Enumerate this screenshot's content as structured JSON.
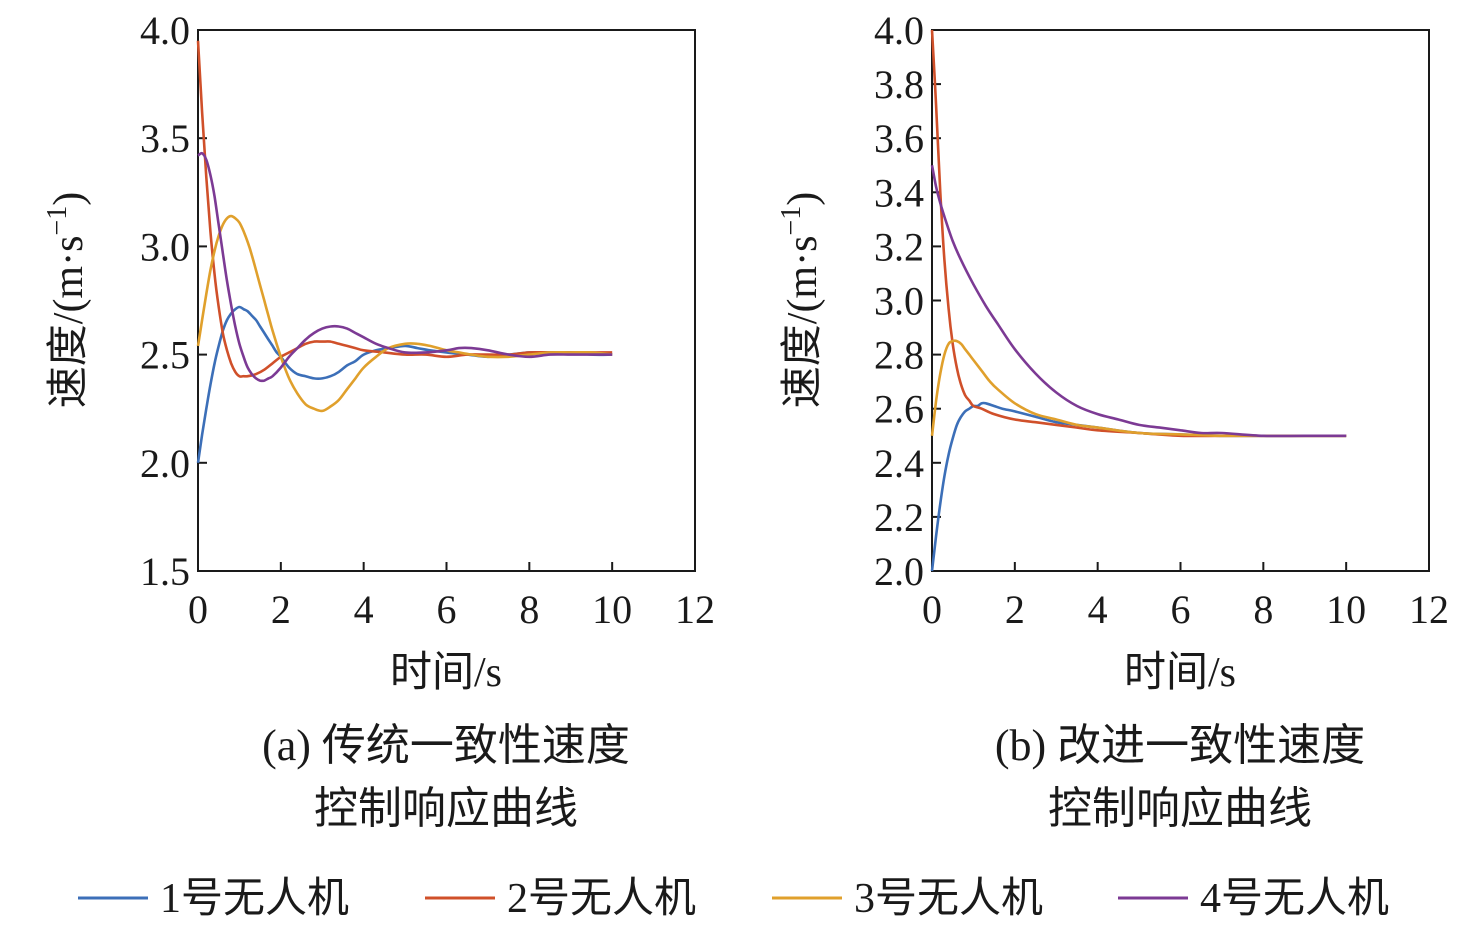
{
  "chart_data": [
    {
      "type": "line",
      "caption_line1": "(a) 传统一致性速度",
      "caption_line2": "控制响应曲线",
      "xlabel": "时间/s",
      "ylabel": "速度/(m·s",
      "ylabel_sup": "−1",
      "ylabel_close": ")",
      "xlim": [
        0,
        12
      ],
      "ylim": [
        1.5,
        4.0
      ],
      "xticks": [
        "0",
        "2",
        "4",
        "6",
        "8",
        "10",
        "12"
      ],
      "yticks": [
        "1.5",
        "2.0",
        "2.5",
        "3.0",
        "3.5",
        "4.0"
      ],
      "grid": false,
      "series": [
        {
          "name": "1号无人机",
          "color": "#3c6fb8",
          "x": [
            0,
            0.1,
            0.2,
            0.3,
            0.4,
            0.5,
            0.6,
            0.7,
            0.8,
            0.9,
            1.0,
            1.1,
            1.2,
            1.3,
            1.4,
            1.5,
            1.6,
            1.7,
            1.8,
            1.9,
            2.0,
            2.2,
            2.4,
            2.6,
            2.8,
            3.0,
            3.2,
            3.4,
            3.6,
            3.8,
            4.0,
            4.3,
            4.6,
            5.0,
            5.3,
            5.6,
            6.0,
            6.5,
            7.0,
            7.5,
            8.0,
            8.5,
            9.0,
            9.5,
            10.0
          ],
          "y": [
            2.0,
            2.13,
            2.25,
            2.36,
            2.46,
            2.54,
            2.61,
            2.66,
            2.69,
            2.71,
            2.72,
            2.71,
            2.7,
            2.68,
            2.66,
            2.63,
            2.6,
            2.57,
            2.54,
            2.51,
            2.49,
            2.44,
            2.41,
            2.4,
            2.39,
            2.39,
            2.4,
            2.42,
            2.45,
            2.47,
            2.5,
            2.52,
            2.53,
            2.54,
            2.53,
            2.52,
            2.51,
            2.5,
            2.49,
            2.5,
            2.51,
            2.51,
            2.51,
            2.5,
            2.5
          ]
        },
        {
          "name": "2号无人机",
          "color": "#d0502a",
          "x": [
            0,
            0.1,
            0.2,
            0.3,
            0.4,
            0.5,
            0.6,
            0.7,
            0.8,
            0.9,
            1.0,
            1.1,
            1.2,
            1.4,
            1.6,
            1.8,
            2.0,
            2.2,
            2.4,
            2.6,
            2.8,
            3.0,
            3.2,
            3.4,
            3.6,
            3.8,
            4.0,
            4.5,
            5.0,
            5.5,
            6.0,
            6.5,
            7.0,
            7.5,
            8.0,
            8.5,
            9.0,
            9.5,
            10.0
          ],
          "y": [
            3.95,
            3.62,
            3.32,
            3.07,
            2.87,
            2.72,
            2.6,
            2.52,
            2.46,
            2.42,
            2.4,
            2.4,
            2.4,
            2.41,
            2.43,
            2.46,
            2.49,
            2.51,
            2.53,
            2.55,
            2.56,
            2.56,
            2.56,
            2.55,
            2.54,
            2.53,
            2.52,
            2.51,
            2.5,
            2.5,
            2.49,
            2.5,
            2.5,
            2.5,
            2.51,
            2.51,
            2.51,
            2.51,
            2.51
          ]
        },
        {
          "name": "3号无人机",
          "color": "#e0a02c",
          "x": [
            0,
            0.1,
            0.2,
            0.3,
            0.4,
            0.5,
            0.6,
            0.7,
            0.8,
            0.9,
            1.0,
            1.1,
            1.2,
            1.3,
            1.4,
            1.5,
            1.6,
            1.7,
            1.8,
            2.0,
            2.2,
            2.4,
            2.6,
            2.8,
            3.0,
            3.2,
            3.4,
            3.6,
            3.8,
            4.0,
            4.3,
            4.6,
            5.0,
            5.3,
            5.6,
            6.0,
            6.3,
            6.6,
            7.0,
            7.5,
            8.0,
            8.5,
            9.0,
            9.5,
            10.0
          ],
          "y": [
            2.54,
            2.66,
            2.78,
            2.89,
            2.98,
            3.05,
            3.1,
            3.13,
            3.14,
            3.13,
            3.11,
            3.07,
            3.02,
            2.96,
            2.89,
            2.82,
            2.75,
            2.68,
            2.61,
            2.49,
            2.39,
            2.32,
            2.27,
            2.25,
            2.24,
            2.26,
            2.29,
            2.34,
            2.39,
            2.44,
            2.49,
            2.53,
            2.55,
            2.55,
            2.54,
            2.52,
            2.51,
            2.5,
            2.49,
            2.49,
            2.5,
            2.51,
            2.51,
            2.51,
            2.5
          ]
        },
        {
          "name": "4号无人机",
          "color": "#7c3a94",
          "x": [
            0,
            0.1,
            0.2,
            0.3,
            0.4,
            0.5,
            0.6,
            0.7,
            0.8,
            0.9,
            1.0,
            1.1,
            1.2,
            1.3,
            1.4,
            1.5,
            1.6,
            1.7,
            1.8,
            2.0,
            2.2,
            2.4,
            2.6,
            2.8,
            3.0,
            3.2,
            3.4,
            3.6,
            3.8,
            4.0,
            4.3,
            4.6,
            5.0,
            5.5,
            6.0,
            6.3,
            6.6,
            7.0,
            7.5,
            8.0,
            8.5,
            9.0,
            9.5,
            10.0
          ],
          "y": [
            3.42,
            3.43,
            3.4,
            3.33,
            3.23,
            3.1,
            2.97,
            2.84,
            2.73,
            2.63,
            2.55,
            2.49,
            2.44,
            2.41,
            2.39,
            2.38,
            2.38,
            2.39,
            2.4,
            2.44,
            2.49,
            2.53,
            2.57,
            2.6,
            2.62,
            2.63,
            2.63,
            2.62,
            2.6,
            2.58,
            2.55,
            2.53,
            2.51,
            2.51,
            2.52,
            2.53,
            2.53,
            2.52,
            2.5,
            2.49,
            2.5,
            2.5,
            2.5,
            2.5
          ]
        }
      ]
    },
    {
      "type": "line",
      "caption_line1": "(b) 改进一致性速度",
      "caption_line2": "控制响应曲线",
      "xlabel": "时间/s",
      "ylabel": "速度/(m·s",
      "ylabel_sup": "−1",
      "ylabel_close": ")",
      "xlim": [
        0,
        12
      ],
      "ylim": [
        2.0,
        4.0
      ],
      "xticks": [
        "0",
        "2",
        "4",
        "6",
        "8",
        "10",
        "12"
      ],
      "yticks": [
        "2.0",
        "2.2",
        "2.4",
        "2.6",
        "2.8",
        "3.0",
        "3.2",
        "3.4",
        "3.6",
        "3.8",
        "4.0"
      ],
      "grid": false,
      "series": [
        {
          "name": "1号无人机",
          "color": "#3c6fb8",
          "x": [
            0,
            0.1,
            0.2,
            0.3,
            0.4,
            0.5,
            0.6,
            0.7,
            0.8,
            0.9,
            1.0,
            1.1,
            1.2,
            1.3,
            1.5,
            1.7,
            2.0,
            2.5,
            3.0,
            3.5,
            4.0,
            5.0,
            6.0,
            7.0,
            8.0,
            9.0,
            10.0
          ],
          "y": [
            2.0,
            2.13,
            2.25,
            2.35,
            2.43,
            2.49,
            2.54,
            2.57,
            2.59,
            2.6,
            2.61,
            2.61,
            2.62,
            2.62,
            2.61,
            2.6,
            2.59,
            2.57,
            2.55,
            2.54,
            2.53,
            2.51,
            2.505,
            2.5,
            2.5,
            2.5,
            2.5
          ]
        },
        {
          "name": "2号无人机",
          "color": "#d0502a",
          "x": [
            0,
            0.1,
            0.2,
            0.3,
            0.4,
            0.5,
            0.6,
            0.7,
            0.8,
            0.9,
            1.0,
            1.2,
            1.5,
            2.0,
            2.5,
            3.0,
            3.5,
            4.0,
            5.0,
            6.0,
            7.0,
            8.0,
            9.0,
            10.0
          ],
          "y": [
            4.0,
            3.72,
            3.4,
            3.15,
            2.97,
            2.84,
            2.75,
            2.69,
            2.65,
            2.63,
            2.61,
            2.6,
            2.58,
            2.56,
            2.55,
            2.54,
            2.53,
            2.52,
            2.51,
            2.5,
            2.5,
            2.5,
            2.5,
            2.5
          ]
        },
        {
          "name": "3号无人机",
          "color": "#e0a02c",
          "x": [
            0,
            0.1,
            0.2,
            0.3,
            0.4,
            0.5,
            0.6,
            0.7,
            0.8,
            0.9,
            1.0,
            1.2,
            1.4,
            1.6,
            2.0,
            2.5,
            3.0,
            3.5,
            4.0,
            5.0,
            6.0,
            7.0,
            8.0,
            9.0,
            10.0
          ],
          "y": [
            2.5,
            2.63,
            2.73,
            2.8,
            2.84,
            2.85,
            2.85,
            2.84,
            2.82,
            2.8,
            2.78,
            2.74,
            2.7,
            2.67,
            2.62,
            2.58,
            2.56,
            2.54,
            2.53,
            2.51,
            2.505,
            2.5,
            2.5,
            2.5,
            2.5
          ]
        },
        {
          "name": "4号无人机",
          "color": "#7c3a94",
          "x": [
            0,
            0.1,
            0.2,
            0.3,
            0.5,
            0.7,
            1.0,
            1.3,
            1.6,
            2.0,
            2.5,
            3.0,
            3.5,
            4.0,
            4.5,
            5.0,
            5.5,
            6.0,
            6.5,
            7.0,
            8.0,
            9.0,
            10.0
          ],
          "y": [
            3.5,
            3.42,
            3.36,
            3.31,
            3.22,
            3.15,
            3.06,
            2.98,
            2.91,
            2.82,
            2.73,
            2.66,
            2.61,
            2.58,
            2.56,
            2.54,
            2.53,
            2.52,
            2.51,
            2.51,
            2.5,
            2.5,
            2.5
          ]
        }
      ]
    }
  ]
}
